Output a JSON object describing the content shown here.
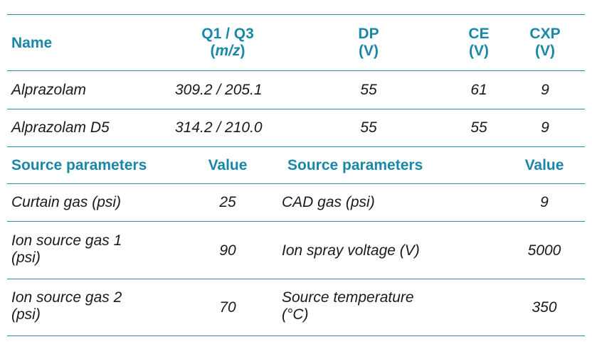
{
  "compound_table": {
    "headers": {
      "name": "Name",
      "q1q3_line1": "Q1 / Q3",
      "q1q3_paren_open": "(",
      "q1q3_unit": "m/z",
      "q1q3_paren_close": ")",
      "dp_line1": "DP",
      "dp_line2": "(V)",
      "ce_line1": "CE",
      "ce_line2": "(V)",
      "cxp_line1": "CXP",
      "cxp_line2": "(V)"
    },
    "rows": [
      {
        "name": "Alprazolam",
        "q1q3": "309.2 / 205.1",
        "dp": "55",
        "ce": "61",
        "cxp": "9"
      },
      {
        "name": "Alprazolam D5",
        "q1q3": "314.2 / 210.0",
        "dp": "55",
        "ce": "55",
        "cxp": "9"
      }
    ]
  },
  "source_table": {
    "headers": {
      "param_left": "Source parameters",
      "value_left": "Value",
      "param_right": "Source parameters",
      "value_right": "Value"
    },
    "rows": [
      {
        "param_left_1": "Curtain gas (psi)",
        "param_left_2": "",
        "value_left": "25",
        "param_right_1": "CAD gas (psi)",
        "param_right_2": "",
        "value_right": "9"
      },
      {
        "param_left_1": "Ion source gas 1",
        "param_left_2": "(psi)",
        "value_left": "90",
        "param_right_1": "Ion spray voltage (V)",
        "param_right_2": "",
        "value_right": "5000"
      },
      {
        "param_left_1": "Ion source gas 2",
        "param_left_2": "(psi)",
        "value_left": "70",
        "param_right_1": "Source temperature",
        "param_right_2": "(°C)",
        "value_right": "350"
      }
    ]
  }
}
